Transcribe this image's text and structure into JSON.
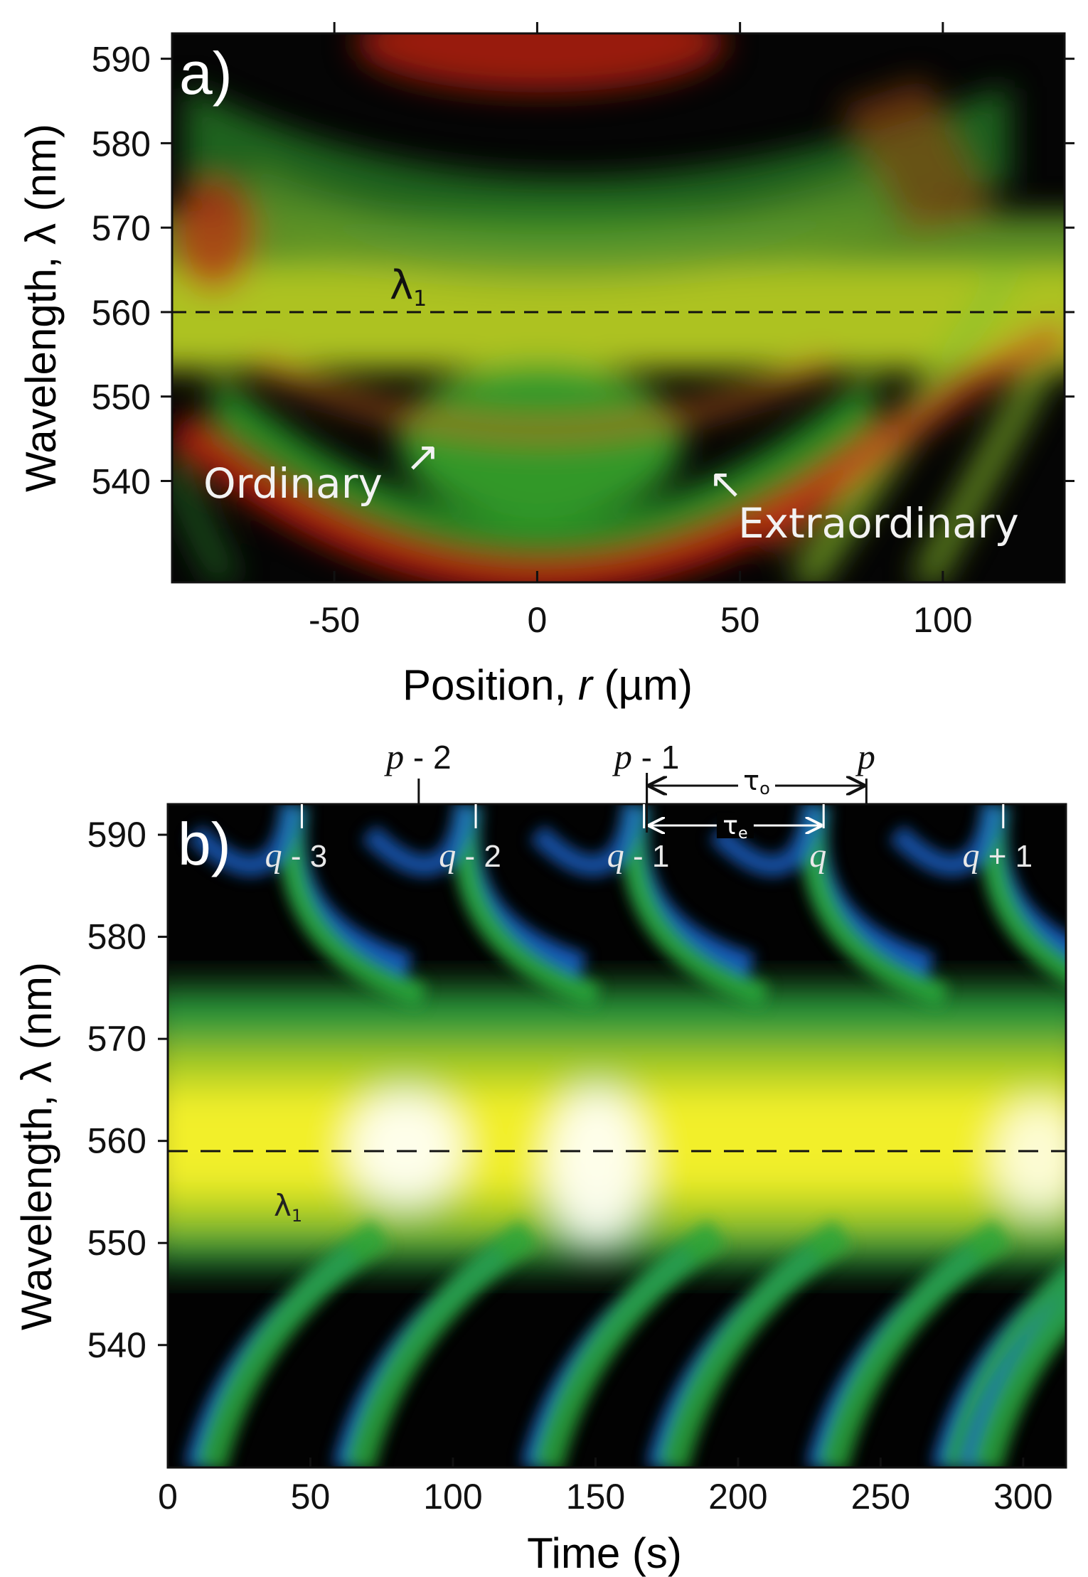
{
  "chart_data": [
    {
      "panel": "a)",
      "type": "heatmap",
      "xlabel": "Position, r (µm)",
      "xlabel_parts": [
        "Position, ",
        "r",
        " (µm)"
      ],
      "ylabel": "Wavelength, λ (nm)",
      "xlim": [
        -90,
        130
      ],
      "ylim": [
        528,
        593
      ],
      "xticks": [
        -50,
        0,
        50,
        100
      ],
      "yticks": [
        540,
        550,
        560,
        570,
        580,
        590
      ],
      "reference_line": {
        "label": "λ1",
        "label_main": "λ",
        "label_sub": "1",
        "wavelength_nm": 560,
        "style": "dashed"
      },
      "annotations": [
        {
          "text": "Ordinary",
          "arrow": "↗"
        },
        {
          "text": "Extraordinary",
          "arrow": "↖"
        }
      ],
      "colormap": [
        "#000000",
        "#1e9a2a",
        "#c0d21c",
        "#c82010"
      ],
      "grid": false
    },
    {
      "panel": "b)",
      "type": "heatmap",
      "xlabel": "Time (s)",
      "ylabel": "Wavelength, λ (nm)",
      "xlim": [
        0,
        315
      ],
      "ylim": [
        528,
        593
      ],
      "xticks": [
        0,
        50,
        100,
        150,
        200,
        250,
        300
      ],
      "yticks": [
        540,
        550,
        560,
        570,
        580,
        590
      ],
      "reference_line": {
        "label": "λ1",
        "label_main": "λ",
        "label_sub": "1",
        "wavelength_nm": 559,
        "style": "dashed"
      },
      "top_markers": [
        {
          "label": "p - 2",
          "italic": "p",
          "rest": " - 2",
          "time_s": 88
        },
        {
          "label": "p - 1",
          "italic": "p",
          "rest": " - 1",
          "time_s": 168
        },
        {
          "label": "p",
          "italic": "p",
          "rest": "",
          "time_s": 245
        }
      ],
      "inner_markers": [
        {
          "label": "q - 3",
          "italic": "q",
          "rest": " - 3",
          "time_s": 47
        },
        {
          "label": "q - 2",
          "italic": "q",
          "rest": " - 2",
          "time_s": 108
        },
        {
          "label": "q - 1",
          "italic": "q",
          "rest": " - 1",
          "time_s": 167
        },
        {
          "label": "q",
          "italic": "q",
          "rest": "",
          "time_s": 230
        },
        {
          "label": "q + 1",
          "italic": "q",
          "rest": " + 1",
          "time_s": 293
        }
      ],
      "periods": [
        {
          "label": "τo",
          "main": "τ",
          "sub": "o",
          "from_s": 168,
          "to_s": 245
        },
        {
          "label": "τe",
          "main": "τ",
          "sub": "e",
          "from_s": 168,
          "to_s": 230
        }
      ],
      "colormap": [
        "#000000",
        "#0a3a8a",
        "#1a6fd0",
        "#2aa63a",
        "#8cc21c",
        "#f2f21a",
        "#ffffff"
      ],
      "grid": false
    }
  ]
}
